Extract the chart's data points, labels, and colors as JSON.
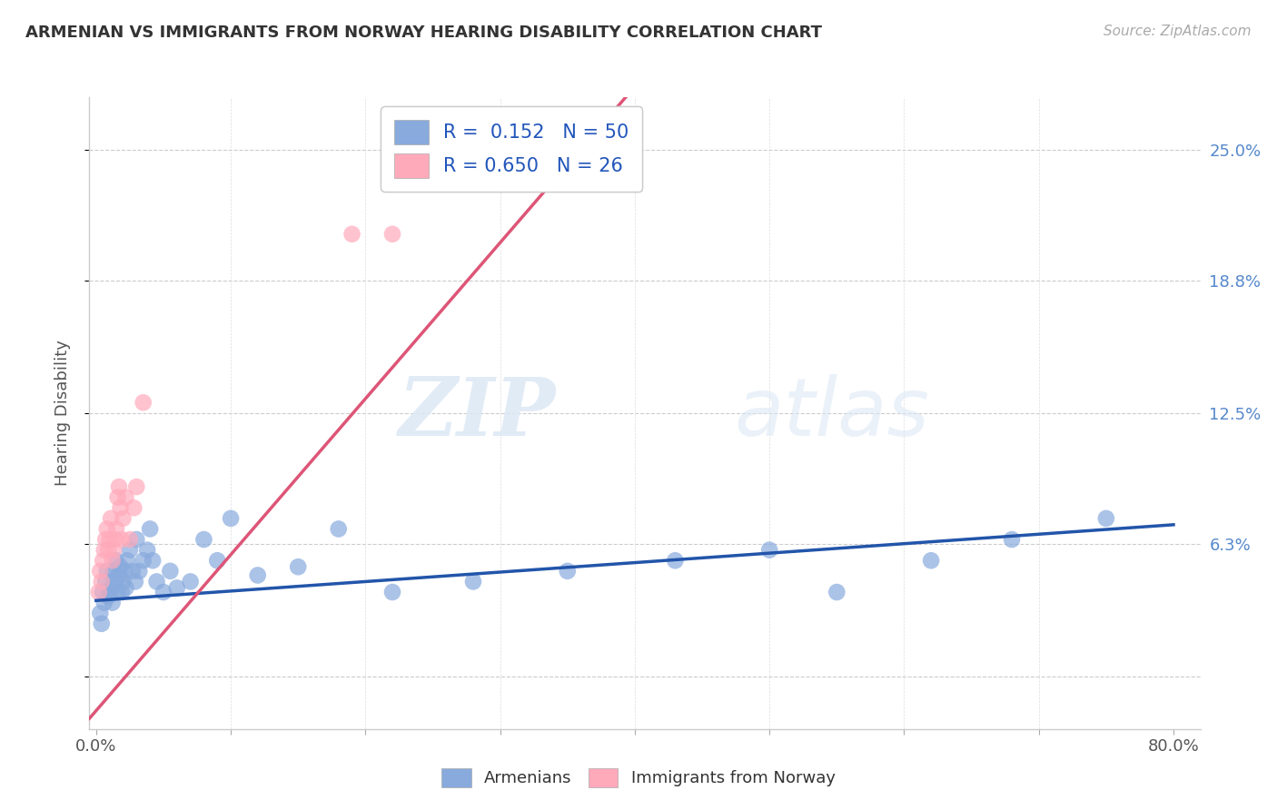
{
  "title": "ARMENIAN VS IMMIGRANTS FROM NORWAY HEARING DISABILITY CORRELATION CHART",
  "source": "Source: ZipAtlas.com",
  "ylabel": "Hearing Disability",
  "yticks": [
    0.0,
    0.063,
    0.125,
    0.188,
    0.25
  ],
  "ytick_labels": [
    "",
    "6.3%",
    "12.5%",
    "18.8%",
    "25.0%"
  ],
  "xmin": -0.005,
  "xmax": 0.82,
  "ymin": -0.025,
  "ymax": 0.275,
  "blue_color": "#88aadd",
  "pink_color": "#ffaabb",
  "blue_line_color": "#2255aa",
  "pink_line_color": "#dd5577",
  "watermark_zip": "ZIP",
  "watermark_atlas": "atlas",
  "blue_scatter_x": [
    0.003,
    0.004,
    0.005,
    0.006,
    0.007,
    0.008,
    0.009,
    0.01,
    0.011,
    0.012,
    0.013,
    0.014,
    0.015,
    0.016,
    0.017,
    0.018,
    0.019,
    0.02,
    0.021,
    0.022,
    0.023,
    0.025,
    0.027,
    0.029,
    0.03,
    0.032,
    0.035,
    0.038,
    0.04,
    0.042,
    0.045,
    0.05,
    0.055,
    0.06,
    0.07,
    0.08,
    0.09,
    0.1,
    0.12,
    0.15,
    0.18,
    0.22,
    0.28,
    0.35,
    0.43,
    0.5,
    0.55,
    0.62,
    0.68,
    0.75
  ],
  "blue_scatter_y": [
    0.03,
    0.025,
    0.04,
    0.035,
    0.045,
    0.05,
    0.038,
    0.04,
    0.042,
    0.035,
    0.05,
    0.045,
    0.055,
    0.04,
    0.048,
    0.052,
    0.04,
    0.045,
    0.05,
    0.042,
    0.055,
    0.06,
    0.05,
    0.045,
    0.065,
    0.05,
    0.055,
    0.06,
    0.07,
    0.055,
    0.045,
    0.04,
    0.05,
    0.042,
    0.045,
    0.065,
    0.055,
    0.075,
    0.048,
    0.052,
    0.07,
    0.04,
    0.045,
    0.05,
    0.055,
    0.06,
    0.04,
    0.055,
    0.065,
    0.075
  ],
  "pink_scatter_x": [
    0.002,
    0.003,
    0.004,
    0.005,
    0.006,
    0.007,
    0.008,
    0.009,
    0.01,
    0.011,
    0.012,
    0.013,
    0.014,
    0.015,
    0.016,
    0.017,
    0.018,
    0.019,
    0.02,
    0.022,
    0.025,
    0.028,
    0.03,
    0.035,
    0.19,
    0.22
  ],
  "pink_scatter_y": [
    0.04,
    0.05,
    0.045,
    0.055,
    0.06,
    0.065,
    0.07,
    0.06,
    0.065,
    0.075,
    0.055,
    0.06,
    0.065,
    0.07,
    0.085,
    0.09,
    0.08,
    0.065,
    0.075,
    0.085,
    0.065,
    0.08,
    0.09,
    0.13,
    0.21,
    0.21
  ],
  "blue_trend_x": [
    0.0,
    0.8
  ],
  "blue_trend_y": [
    0.036,
    0.072
  ],
  "pink_trend_x": [
    -0.005,
    0.4
  ],
  "pink_trend_y": [
    -0.02,
    0.28
  ]
}
